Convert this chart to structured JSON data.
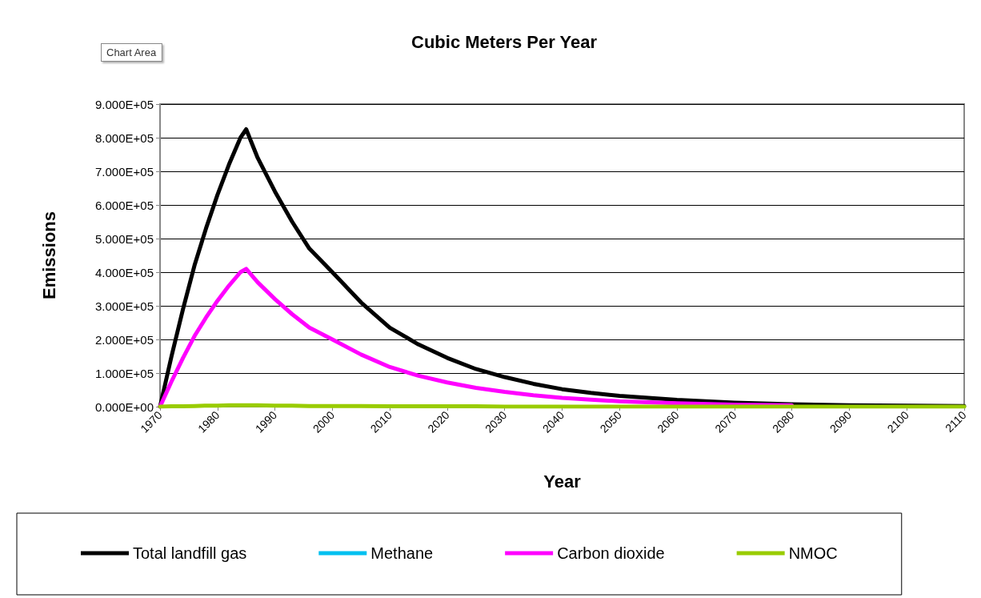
{
  "chart_data": {
    "type": "line",
    "title": "Cubic Meters Per Year",
    "xlabel": "Year",
    "ylabel": "Emissions",
    "annotations": [
      "Chart Area"
    ],
    "x": [
      1970,
      1972,
      1974,
      1976,
      1978,
      1980,
      1982,
      1984,
      1985,
      1987,
      1990,
      1993,
      1996,
      2000,
      2005,
      2010,
      2015,
      2020,
      2025,
      2030,
      2035,
      2040,
      2045,
      2050,
      2060,
      2070,
      2080,
      2090,
      2100,
      2110
    ],
    "series": [
      {
        "name": "Total landfill gas",
        "color": "#000000",
        "values": [
          0,
          150000,
          290000,
          420000,
          530000,
          630000,
          720000,
          800000,
          825000,
          740000,
          640000,
          550000,
          470000,
          400000,
          310000,
          235000,
          185000,
          145000,
          112000,
          88000,
          68000,
          52000,
          41000,
          32000,
          20000,
          12000,
          7000,
          4000,
          3000,
          2000
        ]
      },
      {
        "name": "Methane",
        "color": "#00c0f0",
        "values": [
          null,
          null,
          null,
          null,
          null,
          null,
          null,
          null,
          null,
          null,
          null,
          null,
          null,
          null,
          null,
          null,
          null,
          null,
          null,
          null,
          null,
          null,
          null,
          null,
          null,
          null,
          null,
          null,
          null,
          null
        ]
      },
      {
        "name": "Carbon dioxide",
        "color": "#ff00ff",
        "values": [
          0,
          75000,
          145000,
          210000,
          265000,
          315000,
          360000,
          400000,
          410000,
          370000,
          320000,
          275000,
          235000,
          200000,
          155000,
          118000,
          92000,
          72000,
          56000,
          44000,
          34000,
          26000,
          21000,
          16000,
          10000,
          6000,
          4000,
          null,
          null,
          null
        ]
      },
      {
        "name": "NMOC",
        "color": "#99cc00",
        "values": [
          0,
          1000,
          1000,
          2000,
          3000,
          3000,
          4000,
          4000,
          4000,
          4000,
          3000,
          3000,
          2000,
          2000,
          2000,
          1000,
          1000,
          1000,
          1000,
          0,
          0,
          0,
          0,
          0,
          0,
          0,
          0,
          0,
          0,
          0
        ]
      }
    ],
    "xlim": [
      1970,
      2110
    ],
    "xticks": [
      1970,
      1980,
      1990,
      2000,
      2010,
      2020,
      2030,
      2040,
      2050,
      2060,
      2070,
      2080,
      2090,
      2100,
      2110
    ],
    "ylim": [
      0,
      900000
    ],
    "yticks": [
      {
        "value": 0,
        "label": "0.000E+00"
      },
      {
        "value": 100000,
        "label": "1.000E+05"
      },
      {
        "value": 200000,
        "label": "2.000E+05"
      },
      {
        "value": 300000,
        "label": "3.000E+05"
      },
      {
        "value": 400000,
        "label": "4.000E+05"
      },
      {
        "value": 500000,
        "label": "5.000E+05"
      },
      {
        "value": 600000,
        "label": "6.000E+05"
      },
      {
        "value": 700000,
        "label": "7.000E+05"
      },
      {
        "value": 800000,
        "label": "8.000E+05"
      },
      {
        "value": 900000,
        "label": "9.000E+05"
      }
    ],
    "grid": "y",
    "legend": "bottom",
    "marker": "none",
    "line_style": "solid"
  }
}
